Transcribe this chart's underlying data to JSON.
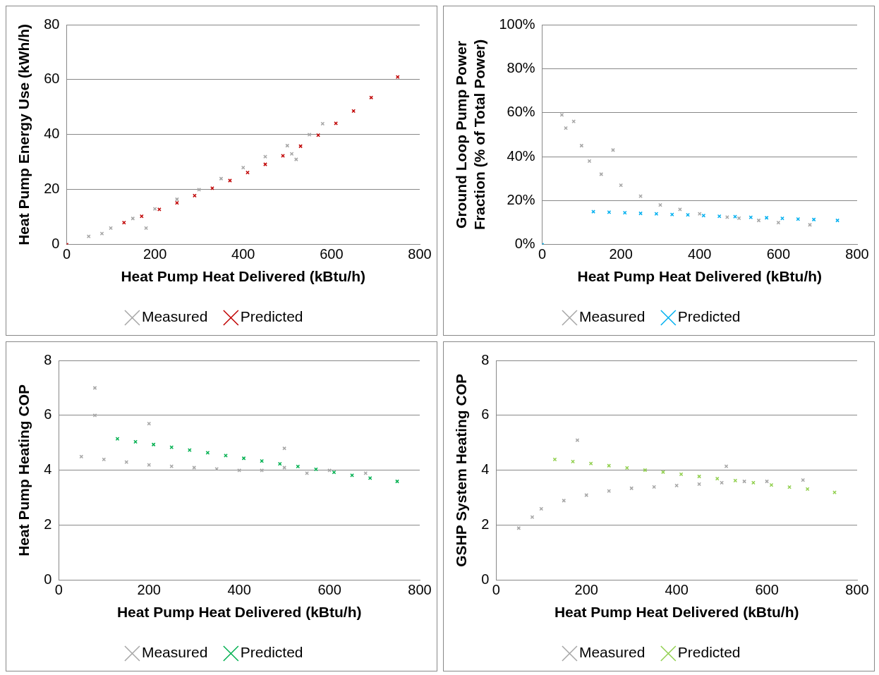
{
  "chart_data": [
    {
      "type": "scatter",
      "xlabel": "Heat Pump Heat Delivered (kBtu/h)",
      "ylabel": "Heat Pump Energy Use (kWh/h)",
      "xlim": [
        0,
        800
      ],
      "xticks": [
        0,
        200,
        400,
        600,
        800
      ],
      "ylim": [
        0,
        80
      ],
      "yticks": [
        0,
        20,
        40,
        60,
        80
      ],
      "grid": "y",
      "legend": "bottom",
      "marker": "cross",
      "series": [
        {
          "name": "Measured",
          "color": "#a6a6a6",
          "x": [
            50,
            80,
            100,
            150,
            180,
            200,
            250,
            300,
            350,
            400,
            450,
            500,
            510,
            520,
            550,
            580
          ],
          "values": [
            3,
            4,
            6,
            9.5,
            6,
            13,
            16.5,
            20,
            24,
            28,
            32,
            36,
            33,
            31,
            40,
            44
          ]
        },
        {
          "name": "Predicted",
          "color": "#c00000",
          "x": [
            0,
            130,
            170,
            210,
            250,
            290,
            330,
            370,
            410,
            450,
            490,
            530,
            570,
            610,
            650,
            690,
            750
          ],
          "values": [
            0,
            8,
            10.3,
            12.8,
            15.2,
            17.8,
            20.5,
            23.3,
            26.2,
            29.2,
            32.3,
            35.8,
            39.8,
            44.1,
            48.6,
            53.5,
            61
          ]
        }
      ]
    },
    {
      "type": "scatter",
      "xlabel": "Heat Pump Heat Delivered (kBtu/h)",
      "ylabel": "Ground Loop Pump Power Fraction (% of Total Power)",
      "xlim": [
        0,
        800
      ],
      "xticks": [
        0,
        200,
        400,
        600,
        800
      ],
      "ylim": [
        0,
        100
      ],
      "yticks": [
        {
          "value": 0,
          "label": "0%"
        },
        {
          "value": 20,
          "label": "20%"
        },
        {
          "value": 40,
          "label": "40%"
        },
        {
          "value": 60,
          "label": "60%"
        },
        {
          "value": 80,
          "label": "80%"
        },
        {
          "value": 100,
          "label": "100%"
        }
      ],
      "grid": "y",
      "legend": "bottom",
      "marker": "cross",
      "series": [
        {
          "name": "Measured",
          "color": "#a6a6a6",
          "x": [
            50,
            60,
            80,
            100,
            120,
            150,
            180,
            200,
            250,
            300,
            350,
            400,
            470,
            500,
            550,
            600,
            680
          ],
          "values": [
            59,
            53,
            56,
            45,
            38,
            32,
            43,
            27,
            22,
            18,
            16,
            14,
            12.5,
            12,
            11,
            10,
            9
          ]
        },
        {
          "name": "Predicted",
          "color": "#00b0f0",
          "x": [
            0,
            130,
            170,
            210,
            250,
            290,
            330,
            370,
            410,
            450,
            490,
            530,
            570,
            610,
            650,
            690,
            750
          ],
          "values": [
            0,
            15,
            14.7,
            14.5,
            14.2,
            14,
            13.7,
            13.5,
            13.2,
            12.9,
            12.7,
            12.4,
            12.2,
            11.9,
            11.6,
            11.4,
            11
          ]
        }
      ]
    },
    {
      "type": "scatter",
      "xlabel": "Heat Pump Heat Delivered (kBtu/h)",
      "ylabel": "Heat Pump Heating COP",
      "xlim": [
        0,
        800
      ],
      "xticks": [
        0,
        200,
        400,
        600,
        800
      ],
      "ylim": [
        0,
        8
      ],
      "yticks": [
        0,
        2,
        4,
        6,
        8
      ],
      "grid": "y",
      "legend": "bottom",
      "marker": "cross",
      "series": [
        {
          "name": "Measured",
          "color": "#a6a6a6",
          "x": [
            50,
            80,
            80,
            100,
            150,
            200,
            200,
            250,
            300,
            350,
            400,
            450,
            500,
            500,
            550,
            600,
            680
          ],
          "values": [
            4.5,
            7,
            6,
            4.4,
            4.3,
            5.7,
            4.2,
            4.15,
            4.1,
            4.05,
            4,
            4,
            4.8,
            4.1,
            3.9,
            4,
            3.9
          ]
        },
        {
          "name": "Predicted",
          "color": "#00b050",
          "x": [
            130,
            170,
            210,
            250,
            290,
            330,
            370,
            410,
            450,
            490,
            530,
            570,
            610,
            650,
            690,
            750
          ],
          "values": [
            5.15,
            5.04,
            4.94,
            4.84,
            4.74,
            4.64,
            4.54,
            4.44,
            4.34,
            4.24,
            4.14,
            4.04,
            3.93,
            3.82,
            3.72,
            3.6
          ]
        }
      ]
    },
    {
      "type": "scatter",
      "xlabel": "Heat Pump Heat Delivered (kBtu/h)",
      "ylabel": "GSHP System Heating COP",
      "xlim": [
        0,
        800
      ],
      "xticks": [
        0,
        200,
        400,
        600,
        800
      ],
      "ylim": [
        0,
        8
      ],
      "yticks": [
        0,
        2,
        4,
        6,
        8
      ],
      "grid": "y",
      "legend": "bottom",
      "marker": "cross",
      "series": [
        {
          "name": "Measured",
          "color": "#a6a6a6",
          "x": [
            50,
            80,
            100,
            150,
            180,
            200,
            250,
            300,
            350,
            400,
            450,
            500,
            510,
            550,
            600,
            680
          ],
          "values": [
            1.9,
            2.3,
            2.6,
            2.9,
            5.1,
            3.1,
            3.25,
            3.35,
            3.4,
            3.45,
            3.5,
            3.55,
            4.15,
            3.6,
            3.6,
            3.65
          ]
        },
        {
          "name": "Predicted",
          "color": "#92d050",
          "x": [
            130,
            170,
            210,
            250,
            290,
            330,
            370,
            410,
            450,
            490,
            530,
            570,
            610,
            650,
            690,
            750
          ],
          "values": [
            4.4,
            4.32,
            4.25,
            4.17,
            4.09,
            4.01,
            3.94,
            3.86,
            3.78,
            3.7,
            3.63,
            3.55,
            3.47,
            3.39,
            3.32,
            3.2
          ]
        }
      ]
    }
  ]
}
